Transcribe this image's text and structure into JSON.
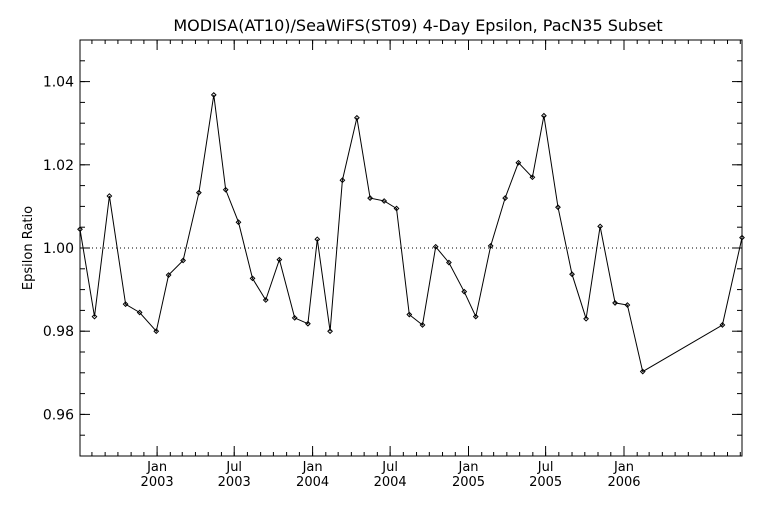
{
  "chart_data": {
    "type": "line",
    "title": "MODISA(AT10)/SeaWiFS(ST09) 4-Day Epsilon, PacN35 Subset",
    "xlabel": "",
    "ylabel": "Epsilon Ratio",
    "xlim": [
      "2002-07-04",
      "2006-10-05"
    ],
    "ylim": [
      0.95,
      1.05
    ],
    "yticks": [
      0.96,
      0.98,
      1.0,
      1.02,
      1.04
    ],
    "yticks_minor_step": 0.005,
    "ytick_labels": [
      "0.96",
      "0.98",
      "1.00",
      "1.02",
      "1.04"
    ],
    "xticks": [
      {
        "date": "2003-01-01",
        "label": [
          "Jan",
          "2003"
        ]
      },
      {
        "date": "2003-07-01",
        "label": [
          "Jul",
          "2003"
        ]
      },
      {
        "date": "2004-01-01",
        "label": [
          "Jan",
          "2004"
        ]
      },
      {
        "date": "2004-07-01",
        "label": [
          "Jul",
          "2004"
        ]
      },
      {
        "date": "2005-01-01",
        "label": [
          "Jan",
          "2005"
        ]
      },
      {
        "date": "2005-07-01",
        "label": [
          "Jul",
          "2005"
        ]
      },
      {
        "date": "2006-01-01",
        "label": [
          "Jan",
          "2006"
        ]
      }
    ],
    "grid": false,
    "reference_line": {
      "y": 1.0,
      "style": "dotted"
    },
    "series": [
      {
        "marker": "diamond",
        "color": "#000000",
        "x": [
          "2002-07-04",
          "2002-08-07",
          "2002-09-11",
          "2002-10-19",
          "2002-11-21",
          "2002-12-30",
          "2003-01-28",
          "2003-03-03",
          "2003-04-09",
          "2003-05-14",
          "2003-06-11",
          "2003-07-11",
          "2003-08-13",
          "2003-09-13",
          "2003-10-15",
          "2003-11-20",
          "2003-12-21",
          "2004-01-12",
          "2004-02-11",
          "2004-03-11",
          "2004-04-14",
          "2004-05-15",
          "2004-06-17",
          "2004-07-16",
          "2004-08-15",
          "2004-09-15",
          "2004-10-16",
          "2004-11-16",
          "2004-12-22",
          "2005-01-18",
          "2005-02-22",
          "2005-03-28",
          "2005-04-28",
          "2005-05-31",
          "2005-06-27",
          "2005-07-30",
          "2005-09-01",
          "2005-10-04",
          "2005-11-06",
          "2005-12-11",
          "2006-01-09",
          "2006-02-14",
          "2006-08-20",
          "2006-10-05"
        ],
        "y": [
          1.0045,
          0.9835,
          1.0125,
          0.9865,
          0.9845,
          0.98,
          0.9935,
          0.997,
          1.0133,
          1.0368,
          1.014,
          1.0062,
          0.9927,
          0.9875,
          0.9972,
          0.9832,
          0.9818,
          1.0021,
          0.98,
          1.0163,
          1.0313,
          1.012,
          1.0113,
          1.0095,
          0.984,
          0.9815,
          1.0003,
          0.9965,
          0.9895,
          0.9835,
          1.0005,
          1.012,
          1.0205,
          1.017,
          1.0318,
          1.0098,
          0.9937,
          0.983,
          1.0052,
          0.9868,
          0.9863,
          0.9703,
          0.9815,
          1.0025
        ]
      }
    ]
  }
}
